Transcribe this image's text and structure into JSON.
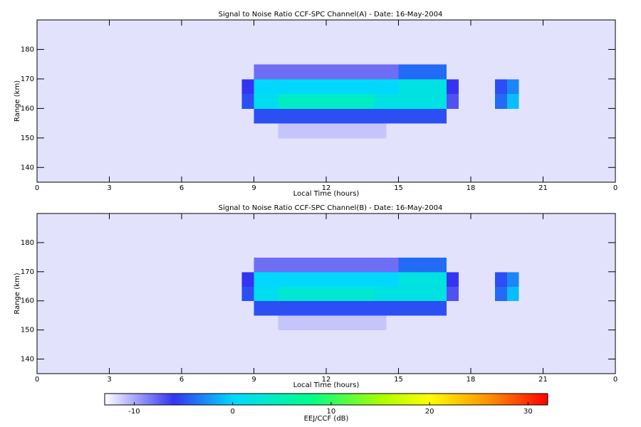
{
  "chart_data": [
    {
      "type": "heatmap",
      "title": "Signal to Noise Ratio CCF-SPC Channel(A) - Date: 16-May-2004",
      "xlabel": "Local Time (hours)",
      "ylabel": "Range (km)",
      "xlim": [
        0,
        24
      ],
      "ylim": [
        135,
        190
      ],
      "xticks": [
        0,
        3,
        6,
        9,
        12,
        15,
        18,
        21,
        {
          "value": 24,
          "label": "0"
        }
      ],
      "yticks": [
        140,
        150,
        160,
        170,
        180
      ],
      "xbins": [
        0,
        0.5,
        1,
        1.5,
        2,
        2.5,
        3,
        3.5,
        4,
        4.5,
        5,
        5.5,
        6,
        6.5,
        7,
        7.5,
        8,
        8.5,
        9,
        9.5,
        10,
        10.5,
        11,
        11.5,
        12,
        12.5,
        13,
        13.5,
        14,
        14.5,
        15,
        15.5,
        16,
        16.5,
        17,
        17.5,
        18,
        18.5,
        19,
        19.5,
        20,
        20.5,
        21,
        21.5,
        22,
        22.5,
        23,
        23.5,
        24
      ],
      "ybins": [
        135,
        140,
        145,
        150,
        155,
        160,
        165,
        170,
        175,
        180,
        185,
        190
      ],
      "z": [
        [
          -12,
          -12,
          -12,
          -12,
          -12,
          -12,
          -12,
          -12,
          -12,
          -12,
          -12,
          -12,
          -12,
          -12,
          -12,
          -12,
          -12,
          -12,
          -12,
          -12,
          -12,
          -12,
          -12,
          -12,
          -12,
          -12,
          -12,
          -12,
          -12,
          -12,
          -12,
          -12,
          -12,
          -12,
          -12,
          -12,
          -12,
          -12,
          -12,
          -12,
          -12,
          -12,
          -12,
          -12,
          -12,
          -12,
          -12,
          -12
        ],
        [
          -12,
          -12,
          -12,
          -12,
          -12,
          -12,
          -12,
          -12,
          -12,
          -12,
          -12,
          -12,
          -12,
          -12,
          -12,
          -12,
          -12,
          -12,
          -12,
          -12,
          -12,
          -12,
          -12,
          -12,
          -12,
          -12,
          -12,
          -12,
          -12,
          -12,
          -12,
          -12,
          -12,
          -12,
          -12,
          -12,
          -12,
          -12,
          -12,
          -12,
          -12,
          -12,
          -12,
          -12,
          -12,
          -12,
          -12,
          -12
        ],
        [
          -12,
          -12,
          -12,
          -12,
          -12,
          -12,
          -12,
          -12,
          -12,
          -12,
          -12,
          -12,
          -12,
          -12,
          -12,
          -12,
          -12,
          -12,
          -12,
          -12,
          -12,
          -12,
          -12,
          -12,
          -12,
          -12,
          -12,
          -12,
          -12,
          -12,
          -12,
          -12,
          -12,
          -12,
          -12,
          -12,
          -12,
          -12,
          -12,
          -12,
          -12,
          -12,
          -12,
          -12,
          -12,
          -12,
          -12,
          -12
        ],
        [
          -12,
          -12,
          -12,
          -12,
          -12,
          -12,
          -12,
          -12,
          -12,
          -12,
          -12,
          -12,
          -12,
          -12,
          -12,
          -12,
          -12,
          -12,
          -12,
          -12,
          -11,
          -11,
          -11,
          -11,
          -11,
          -11,
          -11,
          -11,
          -11,
          -12,
          -12,
          -12,
          -12,
          -12,
          -12,
          -12,
          -12,
          -12,
          -12,
          -12,
          -12,
          -12,
          -12,
          -12,
          -12,
          -12,
          -12,
          -12
        ],
        [
          -12,
          -12,
          -12,
          -12,
          -12,
          -12,
          -12,
          -12,
          -12,
          -12,
          -12,
          -12,
          -12,
          -12,
          -12,
          -12,
          -12,
          -12,
          -5,
          -5,
          -5,
          -5,
          -5,
          -5,
          -5,
          -5,
          -5,
          -5,
          -5,
          -5,
          -5,
          -5,
          -5,
          -5,
          -12,
          -12,
          -12,
          -12,
          -12,
          -12,
          -12,
          -12,
          -12,
          -12,
          -12,
          -12,
          -12,
          -12
        ],
        [
          -12,
          -12,
          -12,
          -12,
          -12,
          -12,
          -12,
          -12,
          -12,
          -12,
          -12,
          -12,
          -12,
          -12,
          -12,
          -12,
          -12,
          -5,
          1,
          1,
          4,
          4,
          4,
          4,
          4,
          4,
          4,
          4,
          2,
          2,
          2,
          2,
          2,
          2,
          -7,
          -12,
          -12,
          -12,
          -4,
          -1,
          -12,
          -12,
          -12,
          -12,
          -12,
          -12,
          -12,
          -12
        ],
        [
          -12,
          -12,
          -12,
          -12,
          -12,
          -12,
          -12,
          -12,
          -12,
          -12,
          -12,
          -12,
          -12,
          -12,
          -12,
          -12,
          -12,
          -6,
          0,
          0,
          0,
          0,
          0,
          0,
          0,
          0,
          0,
          0,
          0,
          0,
          2,
          2,
          2,
          2,
          -6,
          -12,
          -12,
          -12,
          -5,
          -3,
          -12,
          -12,
          -12,
          -12,
          -12,
          -12,
          -12,
          -12
        ],
        [
          -12,
          -12,
          -12,
          -12,
          -12,
          -12,
          -12,
          -12,
          -12,
          -12,
          -12,
          -12,
          -12,
          -12,
          -12,
          -12,
          -12,
          -12,
          -8,
          -8,
          -8,
          -8,
          -8,
          -8,
          -8,
          -8,
          -8,
          -8,
          -8,
          -8,
          -4,
          -4,
          -4,
          -4,
          -12,
          -12,
          -12,
          -12,
          -12,
          -12,
          -12,
          -12,
          -12,
          -12,
          -12,
          -12,
          -12,
          -12
        ],
        [
          -12,
          -12,
          -12,
          -12,
          -12,
          -12,
          -12,
          -12,
          -12,
          -12,
          -12,
          -12,
          -12,
          -12,
          -12,
          -12,
          -12,
          -12,
          -12,
          -12,
          -12,
          -12,
          -12,
          -12,
          -12,
          -12,
          -12,
          -12,
          -12,
          -12,
          -12,
          -12,
          -12,
          -12,
          -12,
          -12,
          -12,
          -12,
          -12,
          -12,
          -12,
          -12,
          -12,
          -12,
          -12,
          -12,
          -12,
          -12
        ],
        [
          -12,
          -12,
          -12,
          -12,
          -12,
          -12,
          -12,
          -12,
          -12,
          -12,
          -12,
          -12,
          -12,
          -12,
          -12,
          -12,
          -12,
          -12,
          -12,
          -12,
          -12,
          -12,
          -12,
          -12,
          -12,
          -12,
          -12,
          -12,
          -12,
          -12,
          -12,
          -12,
          -12,
          -12,
          -12,
          -12,
          -12,
          -12,
          -12,
          -12,
          -12,
          -12,
          -12,
          -12,
          -12,
          -12,
          -12,
          -12
        ],
        [
          -12,
          -12,
          -12,
          -12,
          -12,
          -12,
          -12,
          -12,
          -12,
          -12,
          -12,
          -12,
          -12,
          -12,
          -12,
          -12,
          -12,
          -12,
          -12,
          -12,
          -12,
          -12,
          -12,
          -12,
          -12,
          -12,
          -12,
          -12,
          -12,
          -12,
          -12,
          -12,
          -12,
          -12,
          -12,
          -12,
          -12,
          -12,
          -12,
          -12,
          -12,
          -12,
          -12,
          -12,
          -12,
          -12,
          -12,
          -12
        ]
      ]
    },
    {
      "type": "heatmap",
      "title": "Signal to Noise Ratio CCF-SPC Channel(B) - Date: 16-May-2004",
      "xlabel": "Local Time (hours)",
      "ylabel": "Range (km)",
      "xlim": [
        0,
        24
      ],
      "ylim": [
        135,
        190
      ],
      "xticks": [
        0,
        3,
        6,
        9,
        12,
        15,
        18,
        21,
        {
          "value": 24,
          "label": "0"
        }
      ],
      "yticks": [
        140,
        150,
        160,
        170,
        180
      ],
      "xbins": [
        0,
        0.5,
        1,
        1.5,
        2,
        2.5,
        3,
        3.5,
        4,
        4.5,
        5,
        5.5,
        6,
        6.5,
        7,
        7.5,
        8,
        8.5,
        9,
        9.5,
        10,
        10.5,
        11,
        11.5,
        12,
        12.5,
        13,
        13.5,
        14,
        14.5,
        15,
        15.5,
        16,
        16.5,
        17,
        17.5,
        18,
        18.5,
        19,
        19.5,
        20,
        20.5,
        21,
        21.5,
        22,
        22.5,
        23,
        23.5,
        24
      ],
      "ybins": [
        135,
        140,
        145,
        150,
        155,
        160,
        165,
        170,
        175,
        180,
        185,
        190
      ],
      "z": [
        [
          -12,
          -12,
          -12,
          -12,
          -12,
          -12,
          -12,
          -12,
          -12,
          -12,
          -12,
          -12,
          -12,
          -12,
          -12,
          -12,
          -12,
          -12,
          -12,
          -12,
          -12,
          -12,
          -12,
          -12,
          -12,
          -12,
          -12,
          -12,
          -12,
          -12,
          -12,
          -12,
          -12,
          -12,
          -12,
          -12,
          -12,
          -12,
          -12,
          -12,
          -12,
          -12,
          -12,
          -12,
          -12,
          -12,
          -12,
          -12
        ],
        [
          -12,
          -12,
          -12,
          -12,
          -12,
          -12,
          -12,
          -12,
          -12,
          -12,
          -12,
          -12,
          -12,
          -12,
          -12,
          -12,
          -12,
          -12,
          -12,
          -12,
          -12,
          -12,
          -12,
          -12,
          -12,
          -12,
          -12,
          -12,
          -12,
          -12,
          -12,
          -12,
          -12,
          -12,
          -12,
          -12,
          -12,
          -12,
          -12,
          -12,
          -12,
          -12,
          -12,
          -12,
          -12,
          -12,
          -12,
          -12
        ],
        [
          -12,
          -12,
          -12,
          -12,
          -12,
          -12,
          -12,
          -12,
          -12,
          -12,
          -12,
          -12,
          -12,
          -12,
          -12,
          -12,
          -12,
          -12,
          -12,
          -12,
          -12,
          -12,
          -12,
          -12,
          -12,
          -12,
          -12,
          -12,
          -12,
          -12,
          -12,
          -12,
          -12,
          -12,
          -12,
          -12,
          -12,
          -12,
          -12,
          -12,
          -12,
          -12,
          -12,
          -12,
          -12,
          -12,
          -12,
          -12
        ],
        [
          -12,
          -12,
          -12,
          -12,
          -12,
          -12,
          -12,
          -12,
          -12,
          -12,
          -12,
          -12,
          -12,
          -12,
          -12,
          -12,
          -12,
          -12,
          -12,
          -12,
          -11,
          -11,
          -11,
          -11,
          -11,
          -11,
          -11,
          -11,
          -11,
          -12,
          -12,
          -12,
          -12,
          -12,
          -12,
          -12,
          -12,
          -12,
          -12,
          -12,
          -12,
          -12,
          -12,
          -12,
          -12,
          -12,
          -12,
          -12
        ],
        [
          -12,
          -12,
          -12,
          -12,
          -12,
          -12,
          -12,
          -12,
          -12,
          -12,
          -12,
          -12,
          -12,
          -12,
          -12,
          -12,
          -12,
          -12,
          -5,
          -5,
          -5,
          -5,
          -5,
          -5,
          -5,
          -5,
          -5,
          -5,
          -5,
          -5,
          -5,
          -5,
          -5,
          -5,
          -12,
          -12,
          -12,
          -12,
          -12,
          -12,
          -12,
          -12,
          -12,
          -12,
          -12,
          -12,
          -12,
          -12
        ],
        [
          -12,
          -12,
          -12,
          -12,
          -12,
          -12,
          -12,
          -12,
          -12,
          -12,
          -12,
          -12,
          -12,
          -12,
          -12,
          -12,
          -12,
          -5,
          1,
          1,
          3,
          3,
          3,
          3,
          3,
          3,
          3,
          3,
          2,
          2,
          2,
          2,
          2,
          2,
          -7,
          -12,
          -12,
          -12,
          -4,
          -1,
          -12,
          -12,
          -12,
          -12,
          -12,
          -12,
          -12,
          -12
        ],
        [
          -12,
          -12,
          -12,
          -12,
          -12,
          -12,
          -12,
          -12,
          -12,
          -12,
          -12,
          -12,
          -12,
          -12,
          -12,
          -12,
          -12,
          -6,
          0,
          0,
          0,
          0,
          0,
          0,
          0,
          0,
          0,
          0,
          0,
          0,
          2,
          2,
          2,
          2,
          -6,
          -12,
          -12,
          -12,
          -5,
          -3,
          -12,
          -12,
          -12,
          -12,
          -12,
          -12,
          -12,
          -12
        ],
        [
          -12,
          -12,
          -12,
          -12,
          -12,
          -12,
          -12,
          -12,
          -12,
          -12,
          -12,
          -12,
          -12,
          -12,
          -12,
          -12,
          -12,
          -12,
          -8,
          -8,
          -8,
          -8,
          -8,
          -8,
          -8,
          -8,
          -8,
          -8,
          -8,
          -8,
          -4,
          -4,
          -4,
          -4,
          -12,
          -12,
          -12,
          -12,
          -12,
          -12,
          -12,
          -12,
          -12,
          -12,
          -12,
          -12,
          -12,
          -12
        ],
        [
          -12,
          -12,
          -12,
          -12,
          -12,
          -12,
          -12,
          -12,
          -12,
          -12,
          -12,
          -12,
          -12,
          -12,
          -12,
          -12,
          -12,
          -12,
          -12,
          -12,
          -12,
          -12,
          -12,
          -12,
          -12,
          -12,
          -12,
          -12,
          -12,
          -12,
          -12,
          -12,
          -12,
          -12,
          -12,
          -12,
          -12,
          -12,
          -12,
          -12,
          -12,
          -12,
          -12,
          -12,
          -12,
          -12,
          -12,
          -12
        ],
        [
          -12,
          -12,
          -12,
          -12,
          -12,
          -12,
          -12,
          -12,
          -12,
          -12,
          -12,
          -12,
          -12,
          -12,
          -12,
          -12,
          -12,
          -12,
          -12,
          -12,
          -12,
          -12,
          -12,
          -12,
          -12,
          -12,
          -12,
          -12,
          -12,
          -12,
          -12,
          -12,
          -12,
          -12,
          -12,
          -12,
          -12,
          -12,
          -12,
          -12,
          -12,
          -12,
          -12,
          -12,
          -12,
          -12,
          -12,
          -12
        ],
        [
          -12,
          -12,
          -12,
          -12,
          -12,
          -12,
          -12,
          -12,
          -12,
          -12,
          -12,
          -12,
          -12,
          -12,
          -12,
          -12,
          -12,
          -12,
          -12,
          -12,
          -12,
          -12,
          -12,
          -12,
          -12,
          -12,
          -12,
          -12,
          -12,
          -12,
          -12,
          -12,
          -12,
          -12,
          -12,
          -12,
          -12,
          -12,
          -12,
          -12,
          -12,
          -12,
          -12,
          -12,
          -12,
          -12,
          -12,
          -12
        ]
      ]
    },
    {
      "type": "colorbar",
      "xlabel": "EEJ/CCF (dB)",
      "xlim": [
        -13,
        32
      ],
      "xticks": [
        -10,
        0,
        10,
        20,
        30
      ],
      "colorscale": [
        [
          -13,
          "#ffffff"
        ],
        [
          -6,
          "#3434f0"
        ],
        [
          0,
          "#00d8ff"
        ],
        [
          8,
          "#00ff88"
        ],
        [
          15,
          "#a8ff00"
        ],
        [
          20,
          "#ffff00"
        ],
        [
          26,
          "#ff9000"
        ],
        [
          32,
          "#ff0000"
        ]
      ]
    }
  ]
}
